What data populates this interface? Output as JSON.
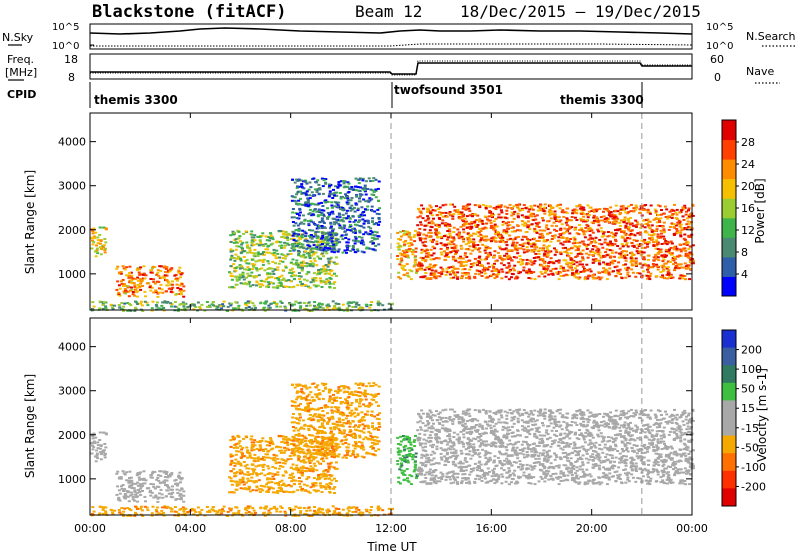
{
  "header": {
    "station": "Blackstone (fitACF)",
    "beam": "Beam 12",
    "date_range": "18/Dec/2015 – 19/Dec/2015"
  },
  "strip1": {
    "left_label": "N.Sky",
    "right_label": "N.Search",
    "left_ticks": [
      "10^5",
      "10^0"
    ],
    "right_ticks": [
      "10^5",
      "10^0"
    ]
  },
  "strip2": {
    "left_label_line1": "Freq.",
    "left_label_line2": "[MHz]",
    "right_label": "Nave",
    "left_ticks": [
      "18",
      "8"
    ],
    "right_ticks": [
      "60",
      "0"
    ]
  },
  "cpid": {
    "label": "CPID",
    "segments": [
      "themis 3300",
      "twofsound 3501",
      "themis 3300"
    ]
  },
  "colors": {
    "power_scale": [
      "#0000ff",
      "#2f5fa8",
      "#4a8a72",
      "#3fb44b",
      "#9acd32",
      "#f5c000",
      "#ff8c00",
      "#ff4000",
      "#e00000"
    ],
    "velocity_scale": [
      "#1a2fd0",
      "#3a5fa0",
      "#2f7a60",
      "#3fbf3f",
      "#a8a8a8",
      "#a8a8a8",
      "#f5a800",
      "#ff7000",
      "#ff3000",
      "#e00000"
    ]
  },
  "chart_data": [
    {
      "type": "heatmap",
      "title": "",
      "xlabel": "",
      "ylabel": "Slant Range [km]",
      "x_ticks": [
        "00:00",
        "04:00",
        "08:00",
        "12:00",
        "16:00",
        "20:00",
        "00:00"
      ],
      "y_ticks": [
        "1000",
        "2000",
        "3000",
        "4000"
      ],
      "ylim": [
        180,
        4650
      ],
      "xlim_hours": [
        0,
        24
      ],
      "colorbar": {
        "label": "Power [dB]",
        "ticks": [
          "4",
          "8",
          "12",
          "16",
          "20",
          "24",
          "28"
        ],
        "range": [
          0,
          30
        ]
      },
      "echo_regions": [
        {
          "t_start": 0.0,
          "t_end": 0.6,
          "range_low": 1400,
          "range_high": 2100,
          "power": 18
        },
        {
          "t_start": 1.0,
          "t_end": 3.7,
          "range_low": 500,
          "range_high": 1200,
          "power": 22
        },
        {
          "t_start": 5.5,
          "t_end": 9.8,
          "range_low": 700,
          "range_high": 2000,
          "power": 14
        },
        {
          "t_start": 8.0,
          "t_end": 11.5,
          "range_low": 1500,
          "range_high": 3200,
          "power": 6
        },
        {
          "t_start": 12.2,
          "t_end": 13.0,
          "range_low": 900,
          "range_high": 2000,
          "power": 20
        },
        {
          "t_start": 13.0,
          "t_end": 24.0,
          "range_low": 900,
          "range_high": 2600,
          "power": 24
        },
        {
          "t_start": 0.0,
          "t_end": 12.0,
          "range_low": 180,
          "range_high": 400,
          "power": 12
        }
      ]
    },
    {
      "type": "heatmap",
      "title": "",
      "xlabel": "Time UT",
      "ylabel": "Slant Range [km]",
      "x_ticks": [
        "00:00",
        "04:00",
        "08:00",
        "12:00",
        "16:00",
        "20:00",
        "00:00"
      ],
      "y_ticks": [
        "1000",
        "2000",
        "3000",
        "4000"
      ],
      "ylim": [
        180,
        4650
      ],
      "xlim_hours": [
        0,
        24
      ],
      "colorbar": {
        "label": "Velocity [m s-1]",
        "ticks": [
          "200",
          "100",
          "50",
          "15",
          "-15",
          "-50",
          "-100",
          "-200"
        ],
        "range": [
          -250,
          250
        ]
      },
      "echo_regions": [
        {
          "t_start": 0.0,
          "t_end": 0.6,
          "range_low": 1400,
          "range_high": 2100,
          "velocity": 0
        },
        {
          "t_start": 1.0,
          "t_end": 3.7,
          "range_low": 500,
          "range_high": 1200,
          "velocity": 0
        },
        {
          "t_start": 5.5,
          "t_end": 9.8,
          "range_low": 700,
          "range_high": 2000,
          "velocity": -40
        },
        {
          "t_start": 8.0,
          "t_end": 11.5,
          "range_low": 1500,
          "range_high": 3200,
          "velocity": -40
        },
        {
          "t_start": 12.2,
          "t_end": 13.0,
          "range_low": 900,
          "range_high": 2000,
          "velocity": 40
        },
        {
          "t_start": 13.0,
          "t_end": 24.0,
          "range_low": 900,
          "range_high": 2600,
          "velocity": 0
        },
        {
          "t_start": 0.0,
          "t_end": 12.0,
          "range_low": 180,
          "range_high": 400,
          "velocity": -40
        }
      ]
    }
  ]
}
